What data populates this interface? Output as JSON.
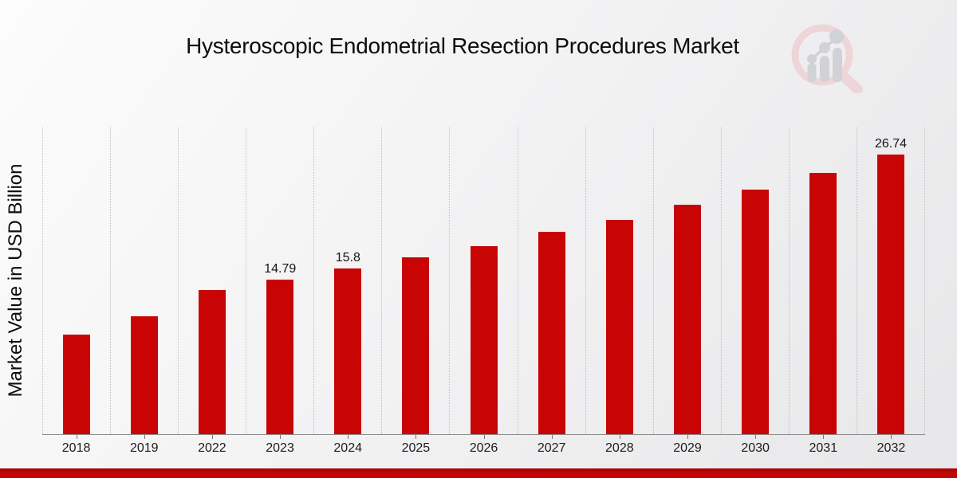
{
  "page": {
    "accent_color": "#c90404",
    "footer_bar_color": "#c00404",
    "background_style": "light gray diagonal gradient"
  },
  "header": {
    "logo_icon": "magnifier-bar-chart-watermark-logo"
  },
  "chart_data": {
    "type": "bar",
    "title": "Hysteroscopic Endometrial Resection Procedures Market",
    "xlabel": "",
    "ylabel": "Market Value in USD Billion",
    "categories": [
      "2018",
      "2019",
      "2022",
      "2023",
      "2024",
      "2025",
      "2026",
      "2027",
      "2028",
      "2029",
      "2030",
      "2031",
      "2032"
    ],
    "values": [
      9.5,
      11.3,
      13.8,
      14.79,
      15.8,
      16.9,
      18.0,
      19.3,
      20.5,
      21.9,
      23.4,
      25.0,
      26.74
    ],
    "bar_labels": [
      "",
      "",
      "",
      "14.79",
      "15.8",
      "",
      "",
      "",
      "",
      "",
      "",
      "",
      "26.74"
    ],
    "bar_color": "#c90404",
    "ylim": [
      0,
      29.3
    ],
    "grid": "vertical dotted category separators only",
    "legend_position": "none",
    "y_axis_ticks_visible": false,
    "x_axis_line_color": "#8a8a8a"
  }
}
